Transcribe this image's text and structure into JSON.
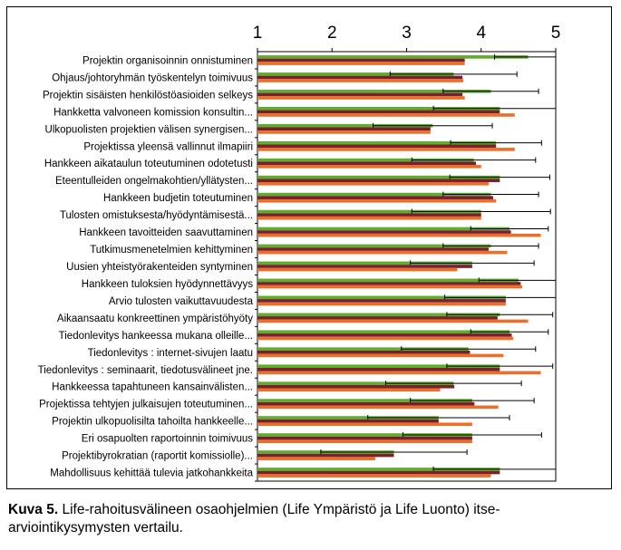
{
  "chart_data": {
    "type": "bar",
    "orientation": "horizontal",
    "title": "",
    "xlabel": "",
    "ylabel": "",
    "xlim": [
      1,
      5
    ],
    "x_ticks": [
      "1",
      "2",
      "3",
      "4",
      "5"
    ],
    "grid": false,
    "legend": "none",
    "colors": {
      "series_1": "#5fad2a",
      "series_2": "#7a1f2e",
      "series_3": "#e8702a",
      "error_bar": "#000000",
      "plot_background": "#ffffff",
      "frame": "#000000"
    },
    "categories": [
      "Projektin organisoinnin onnistuminen",
      "Ohjaus/johtoryhmän työskentelyn toimivuus",
      "Projektin sisäisten henkilöstöasioiden selkeys",
      "Hankketta valvoneen komission konsultin...",
      "Ulkopuolisten projektien välisen synergisen...",
      "Projektissa yleensä vallinnut ilmapiiri",
      "Hankkeen aikataulun toteutuminen odotetusti",
      "Eteentulleiden ongelmakohtien/yllätysten...",
      "Hankkeen budjetin toteutuminen",
      "Tulosten omistuksesta/hyödyntämisestä...",
      "Hankkeen tavoitteiden saavuttaminen",
      "Tutkimusmenetelmien kehittyminen",
      "Uusien yhteistyörakenteiden syntyminen",
      "Hankkeen tuloksien hyödynnettävyys",
      "Arvio tulosten vaikuttavuudesta",
      "Aikaansaatu konkreettinen ympäristöhyöty",
      "Tiedonlevitys hankeessa mukana olleille...",
      "Tiedonlevitys : internet-sivujen laatu",
      "Tiedonlevitys : seminaarit, tiedotusvälineet jne.",
      "Hankkeessa tapahtuneen kansainvälisten...",
      "Projektissa tehtyjen julkaisujen toteutuminen...",
      "Projektin ulkopuolisilta tahoilta hankkeelle...",
      "Eri osapuolten raportoinnin toimivuus",
      "Projektibyrokratian (raportit komissiolle)...",
      "Mahdollisuus kehittää tulevia jatkohankkeita"
    ],
    "series": [
      {
        "values": [
          4.63,
          3.63,
          4.13,
          4.25,
          3.35,
          4.2,
          3.9,
          4.25,
          4.13,
          4.0,
          4.38,
          4.13,
          3.88,
          4.5,
          4.33,
          4.25,
          4.38,
          3.83,
          4.25,
          3.63,
          3.88,
          3.43,
          3.88,
          2.83,
          4.25
        ],
        "errors": [
          0.45,
          0.85,
          0.64,
          0.89,
          0.8,
          0.61,
          0.83,
          0.67,
          0.64,
          0.93,
          0.52,
          0.64,
          0.83,
          0.53,
          0.82,
          0.71,
          0.52,
          0.9,
          0.71,
          0.91,
          0.83,
          0.95,
          0.93,
          0.98,
          0.89
        ]
      },
      {
        "values": [
          3.78,
          3.75,
          3.75,
          4.25,
          3.32,
          4.2,
          3.93,
          4.25,
          4.16,
          4.0,
          4.4,
          4.1,
          3.88,
          4.53,
          4.33,
          4.22,
          4.41,
          3.85,
          4.25,
          3.64,
          3.91,
          3.43,
          3.88,
          2.83,
          4.25
        ],
        "errors": [
          0.0,
          0.0,
          0.0,
          0.0,
          0.0,
          0.0,
          0.0,
          0.0,
          0.0,
          0.0,
          0.0,
          0.0,
          0.0,
          0.0,
          0.0,
          0.0,
          0.0,
          0.0,
          0.0,
          0.0,
          0.0,
          0.0,
          0.0,
          0.0,
          0.0
        ]
      },
      {
        "values": [
          3.78,
          3.76,
          3.78,
          4.45,
          3.32,
          4.45,
          4.0,
          4.1,
          4.2,
          4.0,
          4.8,
          4.35,
          3.68,
          4.55,
          4.33,
          4.63,
          4.43,
          4.3,
          4.8,
          3.45,
          4.23,
          3.88,
          3.88,
          2.58,
          4.13
        ],
        "errors": [
          0.0,
          0.0,
          0.0,
          0.0,
          0.0,
          0.0,
          0.0,
          0.0,
          0.0,
          0.0,
          0.0,
          0.0,
          0.0,
          0.0,
          0.0,
          0.0,
          0.0,
          0.0,
          0.0,
          0.0,
          0.0,
          0.0,
          0.0,
          0.0,
          0.0
        ]
      }
    ]
  },
  "caption": {
    "label": "Kuva 5.",
    "text": " Life-rahoitusvälineen osaohjelmien (Life Ympäristö ja Life Luonto) itse-arviointikysymysten vertailu."
  }
}
